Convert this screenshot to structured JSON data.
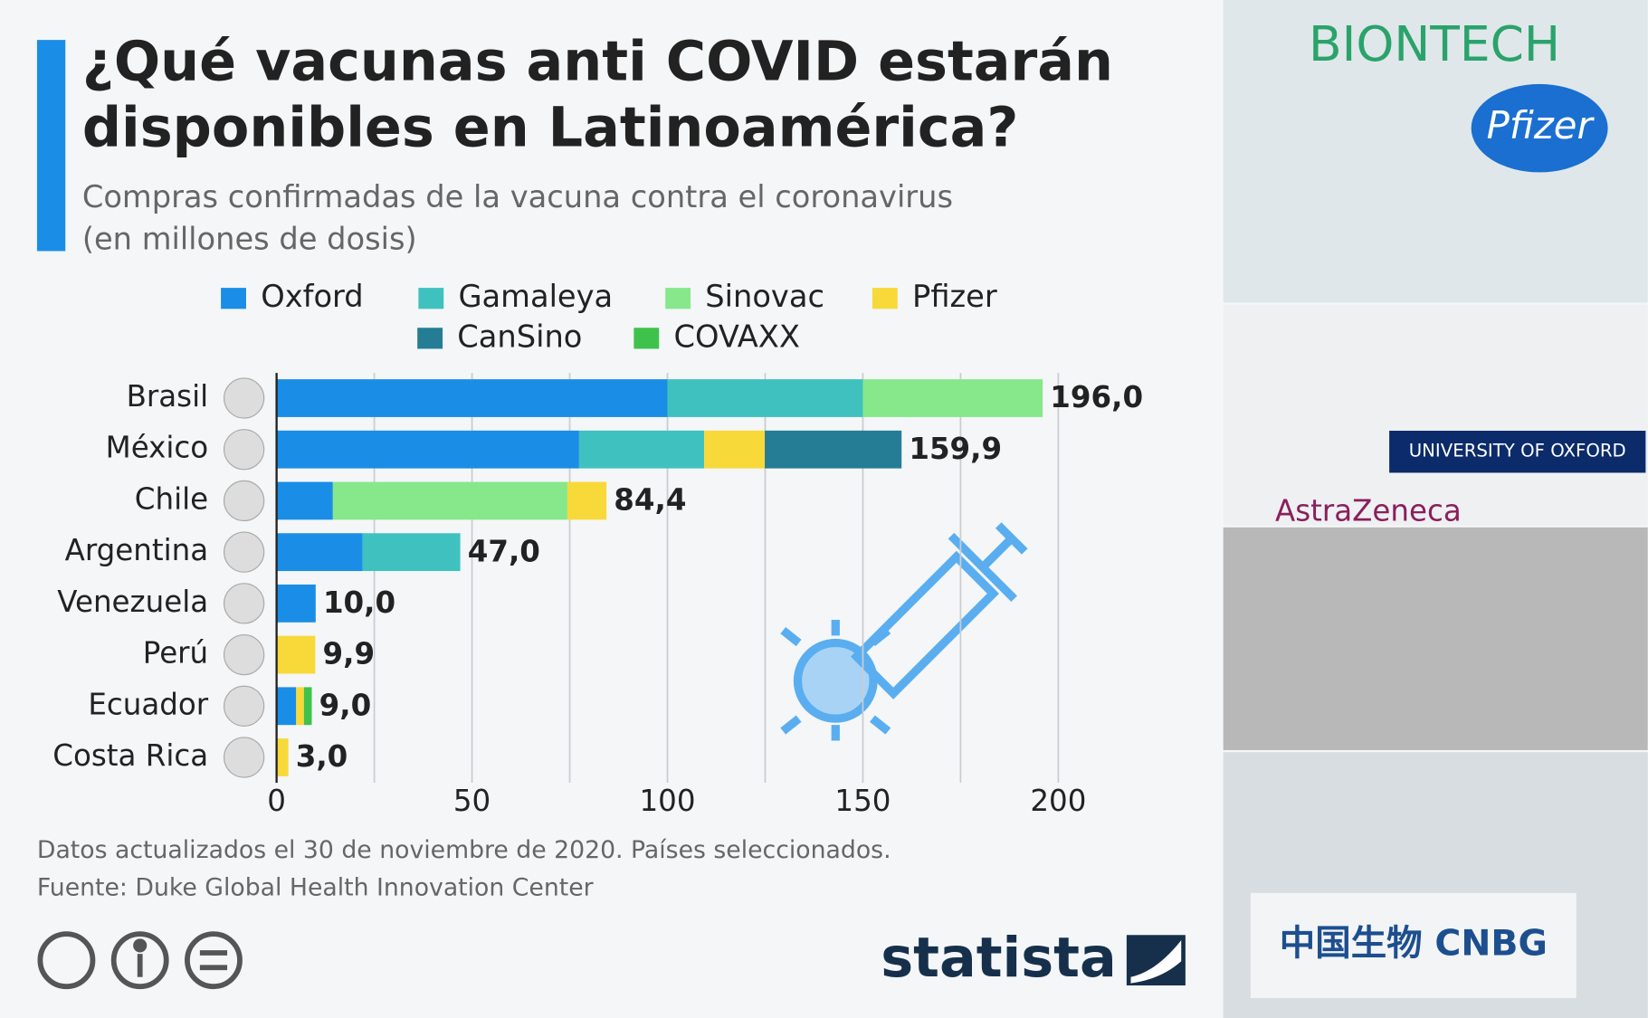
{
  "chart_data": {
    "type": "stacked_barh",
    "title_lines": [
      "¿Qué vacunas anti COVID estarán",
      "disponibles en Latinoamérica?"
    ],
    "subtitle_lines": [
      "Compras confirmadas de la vacuna contra el coronavirus",
      "(en millones de dosis)"
    ],
    "categories": [
      "Brasil",
      "México",
      "Chile",
      "Argentina",
      "Venezuela",
      "Perú",
      "Ecuador",
      "Costa Rica"
    ],
    "series": [
      {
        "name": "Oxford",
        "color": "#1a8ee6",
        "values": [
          100,
          77.4,
          14.4,
          22,
          10,
          null,
          5,
          null
        ]
      },
      {
        "name": "Gamaleya",
        "color": "#3fc1c0",
        "values": [
          50,
          32,
          null,
          25,
          null,
          null,
          null,
          null
        ]
      },
      {
        "name": "Sinovac",
        "color": "#86e88a",
        "values": [
          46,
          null,
          60,
          null,
          null,
          null,
          null,
          null
        ]
      },
      {
        "name": "Pfizer",
        "color": "#f8d93a",
        "values": [
          null,
          15.5,
          10,
          null,
          null,
          9.9,
          2,
          3
        ]
      },
      {
        "name": "CanSino",
        "color": "#257d95",
        "values": [
          null,
          35,
          null,
          null,
          null,
          null,
          null,
          null
        ]
      },
      {
        "name": "COVAXX",
        "color": "#3fc24c",
        "values": [
          null,
          null,
          null,
          null,
          null,
          null,
          2,
          null
        ]
      }
    ],
    "totals": [
      196,
      159.9,
      84.4,
      47,
      10,
      9.9,
      9,
      3
    ],
    "total_labels": [
      "196,0",
      "159,9",
      "84,4",
      "47,0",
      "10,0",
      "9,9",
      "9,0",
      "3,0"
    ],
    "xlim": [
      0,
      200
    ],
    "xticks": [
      0,
      50,
      100,
      150,
      200
    ],
    "minor_xticks": [
      25,
      75,
      125,
      175
    ],
    "grid": true,
    "note": "Datos actualizados el 30 de noviembre de 2020. Países seleccionados.",
    "source": "Fuente: Duke Global Health Innovation Center",
    "brand": "statista",
    "photo_texts": [
      "BIONTECH",
      "Pfizer",
      "UNIVERSITY OF OXFORD",
      "AstraZeneca",
      "中国生物 CNBG"
    ]
  }
}
